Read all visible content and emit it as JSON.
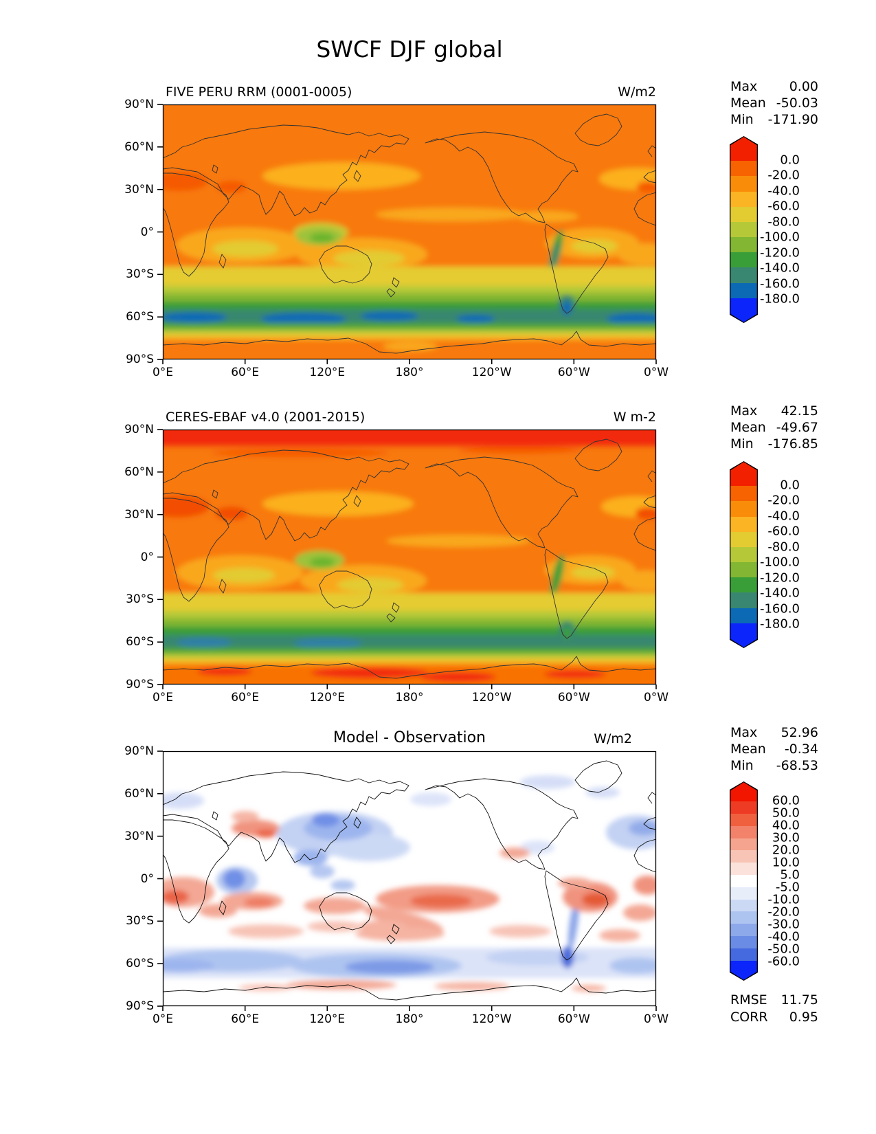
{
  "title": "SWCF DJF global",
  "axes": {
    "lon": [
      "0°E",
      "60°E",
      "120°E",
      "180°",
      "120°W",
      "60°W",
      "0°W"
    ],
    "lat": [
      "90°N",
      "60°N",
      "30°N",
      "0°",
      "30°S",
      "60°S",
      "90°S"
    ]
  },
  "panels": [
    {
      "id": "model",
      "title": "FIVE PERU RRM (0001-0005)",
      "units": "W/m2",
      "stats": [
        {
          "label": "Max",
          "value": "0.00"
        },
        {
          "label": "Mean",
          "value": "-50.03"
        },
        {
          "label": "Min",
          "value": "-171.90"
        }
      ]
    },
    {
      "id": "observation",
      "title": "CERES-EBAF v4.0 (2001-2015)",
      "units": "W m-2",
      "stats": [
        {
          "label": "Max",
          "value": "42.15"
        },
        {
          "label": "Mean",
          "value": "-49.67"
        },
        {
          "label": "Min",
          "value": "-176.85"
        }
      ]
    },
    {
      "id": "difference",
      "title": "Model - Observation",
      "units": "W/m2",
      "stats": [
        {
          "label": "Max",
          "value": "52.96"
        },
        {
          "label": "Mean",
          "value": "-0.34"
        },
        {
          "label": "Min",
          "value": "-68.53"
        }
      ]
    }
  ],
  "colorbars": {
    "swcf": {
      "labels": [
        "0.0",
        "-20.0",
        "-40.0",
        "-60.0",
        "-80.0",
        "-100.0",
        "-120.0",
        "-140.0",
        "-160.0",
        "-180.0"
      ],
      "top": "#f32000",
      "colors": [
        "#f76300",
        "#f98d0a",
        "#fbb423",
        "#e3cb32",
        "#b5c938",
        "#82b633",
        "#3a9e38",
        "#398770",
        "#0c6ab5"
      ],
      "bottom": "#0b25fb"
    },
    "diff": {
      "labels": [
        "60.0",
        "50.0",
        "40.0",
        "30.0",
        "20.0",
        "10.0",
        "5.0",
        "-5.0",
        "-10.0",
        "-20.0",
        "-30.0",
        "-40.0",
        "-50.0",
        "-60.0"
      ],
      "top": "#f21500",
      "colors": [
        "#ee3b23",
        "#f0603f",
        "#f2836a",
        "#f5a48f",
        "#f8c4b6",
        "#fbe2da",
        "#ffffff",
        "#e8edfa",
        "#ccd9f5",
        "#aec4f0",
        "#8da9ea",
        "#6b8ce4",
        "#4569de"
      ],
      "bottom": "#0b25fb"
    }
  },
  "metrics": [
    {
      "label": "RMSE",
      "value": "11.75"
    },
    {
      "label": "CORR",
      "value": "0.95"
    }
  ],
  "chart_data": [
    {
      "type": "heatmap",
      "title": "FIVE PERU RRM (0001-0005)",
      "variable": "SWCF",
      "season": "DJF",
      "region": "global",
      "units": "W/m2",
      "projection": "lat-lon, Pacific-centered (0°E to 0°W)",
      "x_ticks": [
        "0°E",
        "60°E",
        "120°E",
        "180°",
        "120°W",
        "60°W",
        "0°W"
      ],
      "y_ticks": [
        "90°N",
        "60°N",
        "30°N",
        "0°",
        "30°S",
        "60°S",
        "90°S"
      ],
      "contour_levels": [
        0,
        -20,
        -40,
        -60,
        -80,
        -100,
        -120,
        -140,
        -160,
        -180
      ],
      "stats": {
        "max": 0.0,
        "mean": -50.03,
        "min": -171.9
      },
      "colormap": "red-orange-yellow-green-teal-blue (0 to -180), extended both ends"
    },
    {
      "type": "heatmap",
      "title": "CERES-EBAF v4.0 (2001-2015)",
      "variable": "SWCF",
      "season": "DJF",
      "region": "global",
      "units": "W m-2",
      "projection": "lat-lon, Pacific-centered (0°E to 0°W)",
      "x_ticks": [
        "0°E",
        "60°E",
        "120°E",
        "180°",
        "120°W",
        "60°W",
        "0°W"
      ],
      "y_ticks": [
        "90°N",
        "60°N",
        "30°N",
        "0°",
        "30°S",
        "60°S",
        "90°S"
      ],
      "contour_levels": [
        0,
        -20,
        -40,
        -60,
        -80,
        -100,
        -120,
        -140,
        -160,
        -180
      ],
      "stats": {
        "max": 42.15,
        "mean": -49.67,
        "min": -176.85
      },
      "colormap": "red-orange-yellow-green-teal-blue (0 to -180), extended both ends"
    },
    {
      "type": "heatmap",
      "title": "Model - Observation",
      "variable": "SWCF difference",
      "season": "DJF",
      "region": "global",
      "units": "W/m2",
      "projection": "lat-lon, Pacific-centered (0°E to 0°W)",
      "x_ticks": [
        "0°E",
        "60°E",
        "120°E",
        "180°",
        "120°W",
        "60°W",
        "0°W"
      ],
      "y_ticks": [
        "90°N",
        "60°N",
        "30°N",
        "0°",
        "30°S",
        "60°S",
        "90°S"
      ],
      "contour_levels": [
        60,
        50,
        40,
        30,
        20,
        10,
        5,
        -5,
        -10,
        -20,
        -30,
        -40,
        -50,
        -60
      ],
      "stats": {
        "max": 52.96,
        "mean": -0.34,
        "min": -68.53
      },
      "rmse": 11.75,
      "corr": 0.95,
      "colormap": "red-white-blue diverging, extended both ends"
    }
  ]
}
